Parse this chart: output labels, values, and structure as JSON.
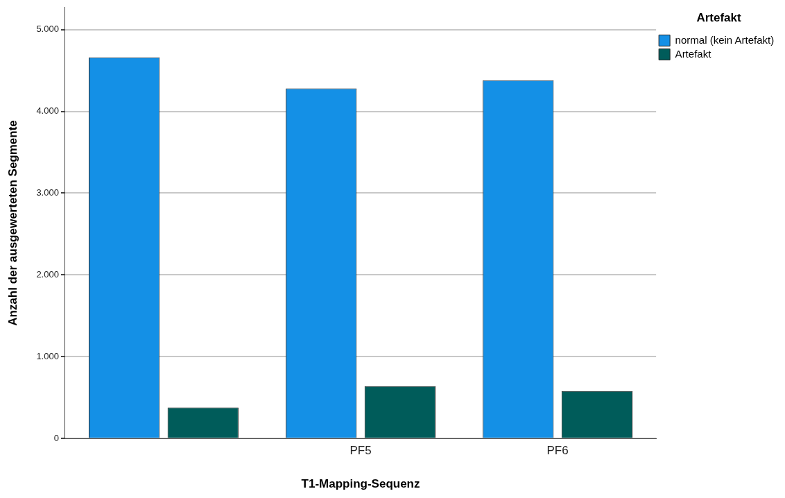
{
  "chart_data": {
    "type": "bar",
    "xlabel": "T1-Mapping-Sequenz",
    "ylabel": "Anzahl der ausgewerteten Segmente",
    "legend_title": "Artefakt",
    "categories": [
      null,
      "PF5",
      "PF6"
    ],
    "series": [
      {
        "name": "normal (kein Artefakt)",
        "color": "#1490e6",
        "values": [
          4660,
          4280,
          4380
        ]
      },
      {
        "name": "Artefakt",
        "color": "#005c5a",
        "values": [
          380,
          640,
          580
        ]
      }
    ],
    "ylim": [
      0,
      5270
    ],
    "yticks": [
      {
        "value": 0,
        "label": "0"
      },
      {
        "value": 1000,
        "label": "1.000"
      },
      {
        "value": 2000,
        "label": "2.000"
      },
      {
        "value": 3000,
        "label": "3.000"
      },
      {
        "value": 4000,
        "label": "4.000"
      },
      {
        "value": 5000,
        "label": "5.000"
      }
    ],
    "grid": "y",
    "legend": "top right"
  }
}
